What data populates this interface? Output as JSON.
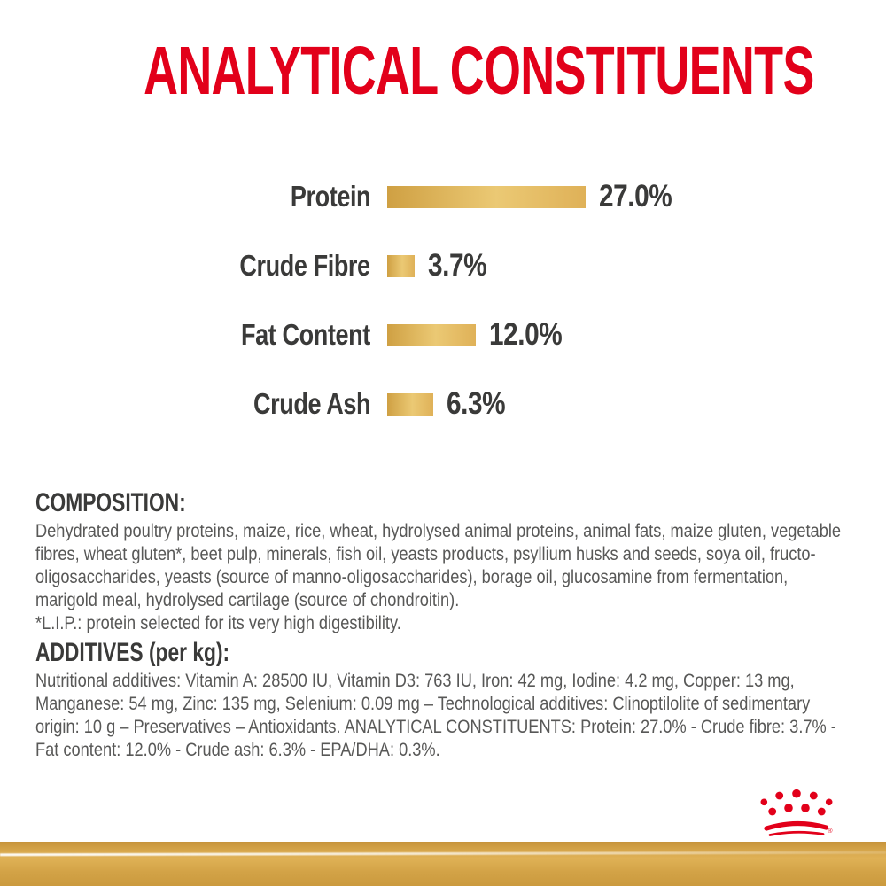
{
  "page": {
    "background": "#FFFFFF"
  },
  "brand": {
    "red": "#E2001A",
    "gold": "#D5A54A",
    "logo": "royal-canin-crown"
  },
  "title": {
    "text": "ANALYTICAL CONSTITUENTS"
  },
  "chart_data": {
    "type": "bar",
    "orientation": "horizontal",
    "title": "ANALYTICAL CONSTITUENTS",
    "categories": [
      "Protein",
      "Crude Fibre",
      "Fat Content",
      "Crude Ash"
    ],
    "values": [
      27.0,
      3.7,
      12.0,
      6.3
    ],
    "value_labels": [
      "27.0%",
      "3.7%",
      "12.0%",
      "6.3%"
    ],
    "unit": "%",
    "xlim": [
      0,
      30
    ],
    "grid": false,
    "legend": false,
    "label_color": "#3A3A39",
    "bar_colors": {
      "start": "#CFA043",
      "mid": "#EBC974",
      "end": "#DFB158"
    }
  },
  "sections": {
    "composition": {
      "heading": "COMPOSITION:",
      "body": "Dehydrated poultry proteins, maize, rice, wheat, hydrolysed animal proteins, animal fats, maize gluten, vegetable fibres, wheat gluten*, beet pulp, minerals, fish oil, yeasts products, psyllium husks and seeds, soya oil, fructo-oligosaccharides, yeasts (source of manno-oligosaccharides), borage oil, glucosamine from fermentation, marigold meal, hydrolysed cartilage (source of chondroitin).",
      "footnote": "*L.I.P.: protein selected for its very high digestibility."
    },
    "additives": {
      "heading": "ADDITIVES (per kg):",
      "body": "Nutritional additives: Vitamin A: 28500 IU, Vitamin D3: 763 IU, Iron: 42 mg, Iodine: 4.2 mg, Copper: 13 mg, Manganese: 54 mg, Zinc: 135 mg, Selenium: 0.09 mg – Technological additives: Clinoptilolite of sedimentary origin: 10 g – Preservatives – Antioxidants. ANALYTICAL CONSTITUENTS: Protein: 27.0% - Crude fibre: 3.7% - Fat content: 12.0% - Crude ash: 6.3% - EPA/DHA: 0.3%."
    }
  }
}
